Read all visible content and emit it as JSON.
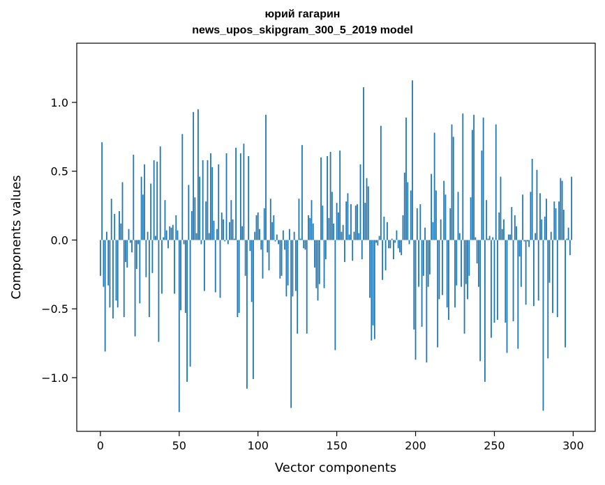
{
  "chart_data": {
    "type": "bar",
    "title": "юрий гагарин",
    "subtitle": "news_upos_skipgram_300_5_2019 model",
    "xlabel": "Vector components",
    "ylabel": "Components values",
    "xlim": [
      -15,
      314
    ],
    "ylim": [
      -1.39,
      1.43
    ],
    "x_ticks": [
      0,
      50,
      100,
      150,
      200,
      250,
      300
    ],
    "x_tick_labels": [
      "0",
      "50",
      "100",
      "150",
      "200",
      "250",
      "300"
    ],
    "y_ticks": [
      -1.0,
      -0.5,
      0.0,
      0.5,
      1.0
    ],
    "y_tick_labels": [
      "−1.0",
      "−0.5",
      "0.0",
      "0.5",
      "1.0"
    ],
    "grid": false,
    "bar_color": "#1f77b4",
    "x_start": 0,
    "values": [
      -0.26,
      0.71,
      -0.34,
      -0.81,
      0.06,
      -0.33,
      -0.49,
      0.3,
      -0.57,
      0.19,
      -0.44,
      -0.49,
      0.21,
      0.12,
      0.42,
      -0.56,
      -0.16,
      -0.2,
      0.08,
      -0.02,
      -0.09,
      0.62,
      -0.7,
      -0.21,
      -0.03,
      -0.46,
      0.46,
      0.33,
      0.55,
      -0.27,
      0.06,
      -0.56,
      0.41,
      -0.24,
      0.58,
      0.03,
      0.57,
      -0.74,
      0.68,
      -0.39,
      0.02,
      0.29,
      0.07,
      -0.06,
      0.1,
      0.09,
      0.11,
      -0.39,
      0.18,
      0.07,
      -1.25,
      -0.51,
      0.77,
      -0.03,
      -0.53,
      -1.03,
      0.4,
      -0.92,
      0.21,
      0.93,
      0.31,
      0.05,
      0.95,
      0.46,
      -0.03,
      0.58,
      -0.37,
      0.28,
      0.58,
      0.05,
      0.63,
      0.53,
      0.14,
      -0.38,
      0.08,
      0.55,
      -0.42,
      0.2,
      0.15,
      -0.01,
      0.63,
      -0.03,
      0.13,
      0.29,
      0.15,
      0.01,
      0.67,
      -0.56,
      -0.53,
      0.63,
      0.1,
      0.7,
      -0.26,
      -1.08,
      0.61,
      -0.08,
      -0.45,
      -1.01,
      0.06,
      0.18,
      0.2,
      0.08,
      -0.07,
      -0.28,
      0.23,
      0.91,
      -0.09,
      -0.22,
      0.3,
      0.13,
      0.18,
      -0.01,
      0.04,
      -0.03,
      -0.28,
      -0.26,
      0.07,
      -0.07,
      -0.41,
      -0.33,
      0.08,
      -1.22,
      -0.41,
      0.06,
      -0.37,
      -0.68,
      0.3,
      0.01,
      0.69,
      -0.06,
      -0.07,
      -0.68,
      0.18,
      0.16,
      0.29,
      0.12,
      -0.2,
      -0.35,
      -0.44,
      -0.32,
      0.6,
      0.25,
      -0.35,
      -0.14,
      0.61,
      0.16,
      0.64,
      0.35,
      0.12,
      -0.8,
      0.27,
      0.2,
      0.65,
      0.06,
      0.11,
      -0.16,
      0.28,
      0.34,
      0.04,
      0.26,
      -0.15,
      0.06,
      0.25,
      0.26,
      0.05,
      0.55,
      -0.14,
      1.11,
      0.27,
      0.45,
      0.39,
      -0.42,
      -0.73,
      -0.62,
      -0.72,
      -0.02,
      -0.04,
      0.03,
      0.83,
      -0.29,
      0.17,
      -0.22,
      0.13,
      -0.06,
      -0.06,
      0.01,
      -0.14,
      -0.02,
      0.07,
      -0.06,
      -0.09,
      -0.11,
      0.18,
      0.49,
      0.89,
      0.42,
      -0.03,
      0.36,
      1.16,
      -0.65,
      -0.87,
      0.23,
      -0.34,
      0.26,
      -0.63,
      -0.26,
      0.09,
      -0.89,
      -0.34,
      -0.25,
      0.48,
      0.13,
      0.78,
      0.36,
      -0.78,
      -0.43,
      0.15,
      -0.4,
      0.43,
      0.33,
      -0.49,
      -0.58,
      0.23,
      0.84,
      0.75,
      -0.49,
      -0.33,
      0.35,
      0.05,
      -0.34,
      0.92,
      -0.68,
      -0.32,
      -0.43,
      -0.26,
      0.31,
      0.8,
      0.91,
      0.02,
      -0.17,
      -0.34,
      -0.88,
      0.65,
      0.89,
      -1.03,
      0.29,
      0.01,
      0.03,
      -0.71,
      0.02,
      -0.6,
      0.84,
      -0.58,
      0.2,
      0.46,
      0.08,
      0.15,
      -0.6,
      -0.82,
      0.04,
      0.04,
      0.24,
      -0.59,
      0.18,
      0.1,
      -0.79,
      -0.12,
      -0.34,
      0.33,
      -0.01,
      -0.47,
      -0.01,
      -0.05,
      0.35,
      0.59,
      -0.48,
      0.05,
      0.51,
      -0.44,
      0.34,
      0.15,
      -1.24,
      0.17,
      0.3,
      -0.86,
      -0.31,
      0.06,
      -0.53,
      0.28,
      0.23,
      -0.56,
      0.28,
      0.45,
      0.43,
      0.22,
      -0.78,
      0.01,
      0.09,
      -0.11,
      0.46
    ]
  }
}
